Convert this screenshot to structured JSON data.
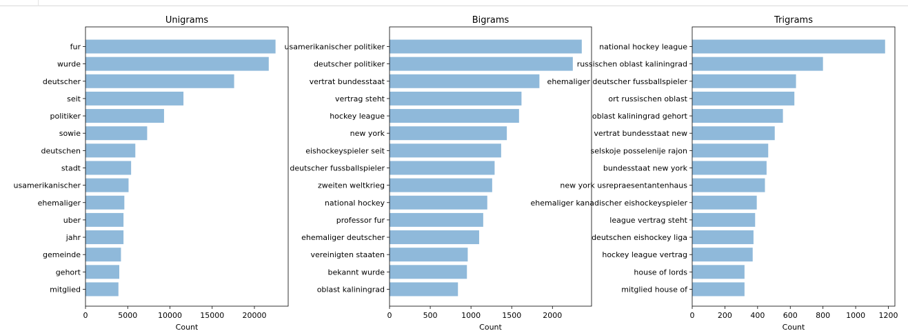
{
  "chart_data": [
    {
      "type": "bar",
      "orientation": "horizontal",
      "title": "Unigrams",
      "xlabel": "Count",
      "ylabel": "",
      "xlim": [
        0,
        24000
      ],
      "xticks": [
        0,
        5000,
        10000,
        15000,
        20000
      ],
      "bar_color": "#8fb9da",
      "categories": [
        "fur",
        "wurde",
        "deutscher",
        "seit",
        "politiker",
        "sowie",
        "deutschen",
        "stadt",
        "usamerikanischer",
        "ehemaliger",
        "uber",
        "jahr",
        "gemeinde",
        "gehort",
        "mitglied"
      ],
      "values": [
        22500,
        21700,
        17600,
        11600,
        9300,
        7300,
        5900,
        5400,
        5100,
        4600,
        4500,
        4500,
        4200,
        4000,
        3900
      ]
    },
    {
      "type": "bar",
      "orientation": "horizontal",
      "title": "Bigrams",
      "xlabel": "Count",
      "ylabel": "",
      "xlim": [
        0,
        2480
      ],
      "xticks": [
        0,
        500,
        1000,
        1500,
        2000
      ],
      "bar_color": "#8fb9da",
      "categories": [
        "usamerikanischer politiker",
        "deutscher politiker",
        "vertrat bundesstaat",
        "vertrag steht",
        "hockey league",
        "new york",
        "eishockeyspieler seit",
        "deutscher fussballspieler",
        "zweiten weltkrieg",
        "national hockey",
        "professor fur",
        "ehemaliger deutscher",
        "vereinigten staaten",
        "bekannt wurde",
        "oblast kaliningrad"
      ],
      "values": [
        2360,
        2250,
        1840,
        1620,
        1590,
        1440,
        1370,
        1290,
        1260,
        1200,
        1150,
        1100,
        960,
        950,
        840
      ]
    },
    {
      "type": "bar",
      "orientation": "horizontal",
      "title": "Trigrams",
      "xlabel": "Count",
      "ylabel": "",
      "xlim": [
        0,
        1240
      ],
      "xticks": [
        0,
        200,
        400,
        600,
        800,
        1000,
        1200
      ],
      "bar_color": "#8fb9da",
      "categories": [
        "national hockey league",
        "russischen oblast kaliningrad",
        "ehemaliger deutscher fussballspieler",
        "ort russischen oblast",
        "oblast kaliningrad gehort",
        "vertrat bundesstaat new",
        "selskoje posselenije rajon",
        "bundesstaat new york",
        "new york usrepraesentantenhaus",
        "ehemaliger kanadischer eishockeyspieler",
        "league vertrag steht",
        "deutschen eishockey liga",
        "hockey league vertrag",
        "house of lords",
        "mitglied house of"
      ],
      "values": [
        1180,
        800,
        635,
        625,
        555,
        505,
        465,
        455,
        445,
        395,
        385,
        375,
        370,
        320,
        320
      ]
    }
  ]
}
